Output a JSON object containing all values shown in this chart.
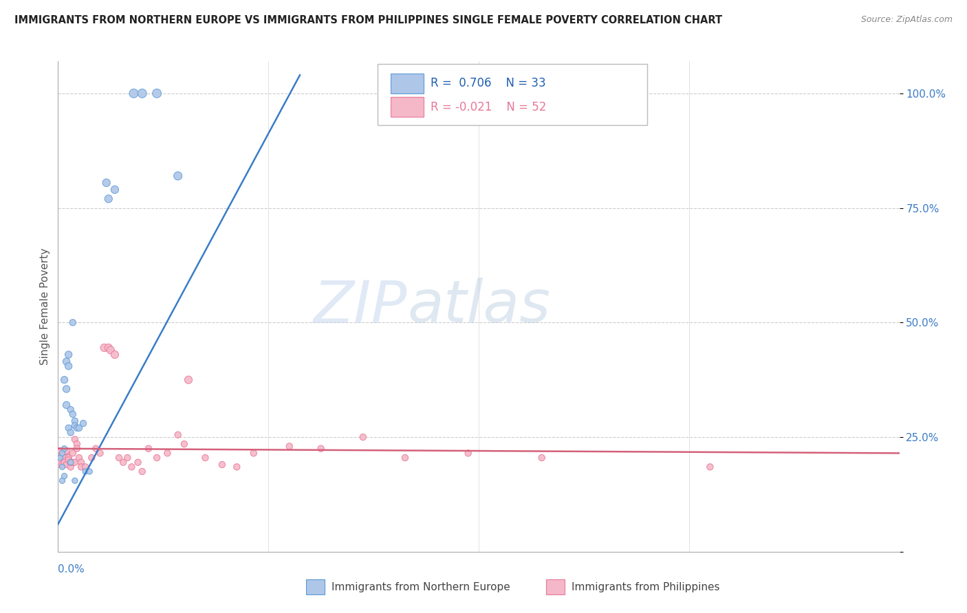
{
  "title": "IMMIGRANTS FROM NORTHERN EUROPE VS IMMIGRANTS FROM PHILIPPINES SINGLE FEMALE POVERTY CORRELATION CHART",
  "source": "Source: ZipAtlas.com",
  "ylabel": "Single Female Poverty",
  "y_ticks": [
    0.0,
    0.25,
    0.5,
    0.75,
    1.0
  ],
  "y_tick_labels": [
    "",
    "25.0%",
    "50.0%",
    "75.0%",
    "100.0%"
  ],
  "xlim": [
    0.0,
    0.4
  ],
  "ylim": [
    0.0,
    1.07
  ],
  "blue_R": 0.706,
  "blue_N": 33,
  "pink_R": -0.021,
  "pink_N": 52,
  "watermark_zip": "ZIP",
  "watermark_atlas": "atlas",
  "blue_color": "#aec6e8",
  "pink_color": "#f4b8c8",
  "blue_edge_color": "#5b9bd5",
  "pink_edge_color": "#e87898",
  "blue_line_color": "#3a7cc7",
  "pink_line_color": "#d4607a",
  "legend_R_color": "#3a7cc7",
  "legend_text_color": "#2060b0",
  "blue_scatter": [
    [
      0.001,
      0.205
    ],
    [
      0.002,
      0.215
    ],
    [
      0.002,
      0.185
    ],
    [
      0.003,
      0.225
    ],
    [
      0.003,
      0.375
    ],
    [
      0.004,
      0.415
    ],
    [
      0.004,
      0.355
    ],
    [
      0.004,
      0.32
    ],
    [
      0.005,
      0.405
    ],
    [
      0.005,
      0.43
    ],
    [
      0.005,
      0.27
    ],
    [
      0.006,
      0.26
    ],
    [
      0.006,
      0.31
    ],
    [
      0.007,
      0.3
    ],
    [
      0.007,
      0.5
    ],
    [
      0.008,
      0.285
    ],
    [
      0.008,
      0.275
    ],
    [
      0.009,
      0.27
    ],
    [
      0.01,
      0.27
    ],
    [
      0.012,
      0.28
    ],
    [
      0.013,
      0.175
    ],
    [
      0.015,
      0.175
    ],
    [
      0.002,
      0.155
    ],
    [
      0.003,
      0.165
    ],
    [
      0.023,
      0.805
    ],
    [
      0.027,
      0.79
    ],
    [
      0.036,
      1.0
    ],
    [
      0.04,
      1.0
    ],
    [
      0.047,
      1.0
    ],
    [
      0.024,
      0.77
    ],
    [
      0.057,
      0.82
    ],
    [
      0.008,
      0.155
    ],
    [
      0.006,
      0.195
    ]
  ],
  "blue_sizes": [
    35,
    35,
    35,
    35,
    55,
    55,
    55,
    55,
    55,
    55,
    45,
    45,
    45,
    45,
    45,
    45,
    45,
    45,
    45,
    45,
    35,
    35,
    35,
    35,
    65,
    65,
    85,
    85,
    85,
    65,
    75,
    35,
    35
  ],
  "pink_scatter": [
    [
      0.001,
      0.205
    ],
    [
      0.001,
      0.22
    ],
    [
      0.002,
      0.19
    ],
    [
      0.002,
      0.21
    ],
    [
      0.003,
      0.205
    ],
    [
      0.003,
      0.195
    ],
    [
      0.004,
      0.19
    ],
    [
      0.004,
      0.22
    ],
    [
      0.005,
      0.205
    ],
    [
      0.005,
      0.2
    ],
    [
      0.006,
      0.185
    ],
    [
      0.006,
      0.195
    ],
    [
      0.007,
      0.215
    ],
    [
      0.007,
      0.195
    ],
    [
      0.008,
      0.195
    ],
    [
      0.008,
      0.245
    ],
    [
      0.009,
      0.235
    ],
    [
      0.009,
      0.225
    ],
    [
      0.01,
      0.205
    ],
    [
      0.011,
      0.195
    ],
    [
      0.011,
      0.185
    ],
    [
      0.013,
      0.185
    ],
    [
      0.016,
      0.205
    ],
    [
      0.018,
      0.225
    ],
    [
      0.02,
      0.215
    ],
    [
      0.022,
      0.445
    ],
    [
      0.024,
      0.445
    ],
    [
      0.025,
      0.44
    ],
    [
      0.027,
      0.43
    ],
    [
      0.029,
      0.205
    ],
    [
      0.031,
      0.195
    ],
    [
      0.033,
      0.205
    ],
    [
      0.035,
      0.185
    ],
    [
      0.038,
      0.195
    ],
    [
      0.04,
      0.175
    ],
    [
      0.043,
      0.225
    ],
    [
      0.047,
      0.205
    ],
    [
      0.052,
      0.215
    ],
    [
      0.057,
      0.255
    ],
    [
      0.06,
      0.235
    ],
    [
      0.062,
      0.375
    ],
    [
      0.07,
      0.205
    ],
    [
      0.078,
      0.19
    ],
    [
      0.085,
      0.185
    ],
    [
      0.093,
      0.215
    ],
    [
      0.11,
      0.23
    ],
    [
      0.125,
      0.225
    ],
    [
      0.145,
      0.25
    ],
    [
      0.165,
      0.205
    ],
    [
      0.195,
      0.215
    ],
    [
      0.23,
      0.205
    ],
    [
      0.31,
      0.185
    ]
  ],
  "pink_sizes": [
    420,
    45,
    45,
    45,
    45,
    45,
    45,
    45,
    45,
    45,
    45,
    45,
    45,
    45,
    45,
    45,
    45,
    45,
    45,
    45,
    45,
    45,
    45,
    45,
    45,
    65,
    65,
    65,
    65,
    45,
    45,
    45,
    45,
    45,
    45,
    45,
    45,
    45,
    45,
    45,
    65,
    45,
    45,
    45,
    45,
    45,
    45,
    45,
    45,
    45,
    45,
    45
  ],
  "blue_trendline": [
    [
      0.0,
      0.06
    ],
    [
      0.115,
      1.04
    ]
  ],
  "pink_trendline": [
    [
      0.0,
      0.225
    ],
    [
      0.4,
      0.215
    ]
  ]
}
